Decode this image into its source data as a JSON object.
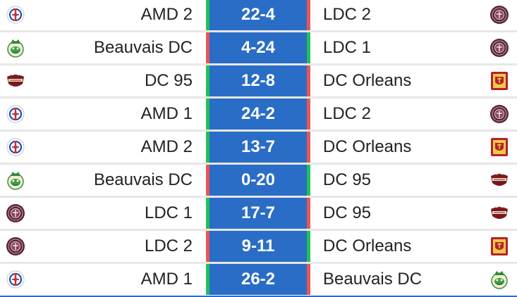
{
  "colors": {
    "score_bg": "#2a6dc6",
    "win": "#21c05a",
    "loss": "#ea5555",
    "text": "#222222",
    "separator": "#e7e7e7"
  },
  "matches": [
    {
      "home": "AMD 2",
      "home_logo": "amd-logo-icon",
      "score": "22-4",
      "away": "LDC 2",
      "away_logo": "ldc-logo-icon",
      "home_result": "win",
      "away_result": "loss"
    },
    {
      "home": "Beauvais DC",
      "home_logo": "beauvais-dc-logo-icon",
      "score": "4-24",
      "away": "LDC 1",
      "away_logo": "ldc-logo-icon",
      "home_result": "loss",
      "away_result": "win"
    },
    {
      "home": "DC 95",
      "home_logo": "dc95-logo-icon",
      "score": "12-8",
      "away": "DC Orleans",
      "away_logo": "dc-orleans-logo-icon",
      "home_result": "win",
      "away_result": "loss"
    },
    {
      "home": "AMD 1",
      "home_logo": "amd-logo-icon",
      "score": "24-2",
      "away": "LDC 2",
      "away_logo": "ldc-logo-icon",
      "home_result": "win",
      "away_result": "loss"
    },
    {
      "home": "AMD 2",
      "home_logo": "amd-logo-icon",
      "score": "13-7",
      "away": "DC Orleans",
      "away_logo": "dc-orleans-logo-icon",
      "home_result": "win",
      "away_result": "loss"
    },
    {
      "home": "Beauvais DC",
      "home_logo": "beauvais-dc-logo-icon",
      "score": "0-20",
      "away": "DC 95",
      "away_logo": "dc95-logo-icon",
      "home_result": "loss",
      "away_result": "win"
    },
    {
      "home": "LDC 1",
      "home_logo": "ldc-logo-icon",
      "score": "17-7",
      "away": "DC 95",
      "away_logo": "dc95-logo-icon",
      "home_result": "win",
      "away_result": "loss"
    },
    {
      "home": "LDC 2",
      "home_logo": "ldc-logo-icon",
      "score": "9-11",
      "away": "DC Orleans",
      "away_logo": "dc-orleans-logo-icon",
      "home_result": "loss",
      "away_result": "win"
    },
    {
      "home": "AMD 1",
      "home_logo": "amd-logo-icon",
      "score": "26-2",
      "away": "Beauvais DC",
      "away_logo": "beauvais-dc-logo-icon",
      "home_result": "win",
      "away_result": "loss"
    }
  ]
}
